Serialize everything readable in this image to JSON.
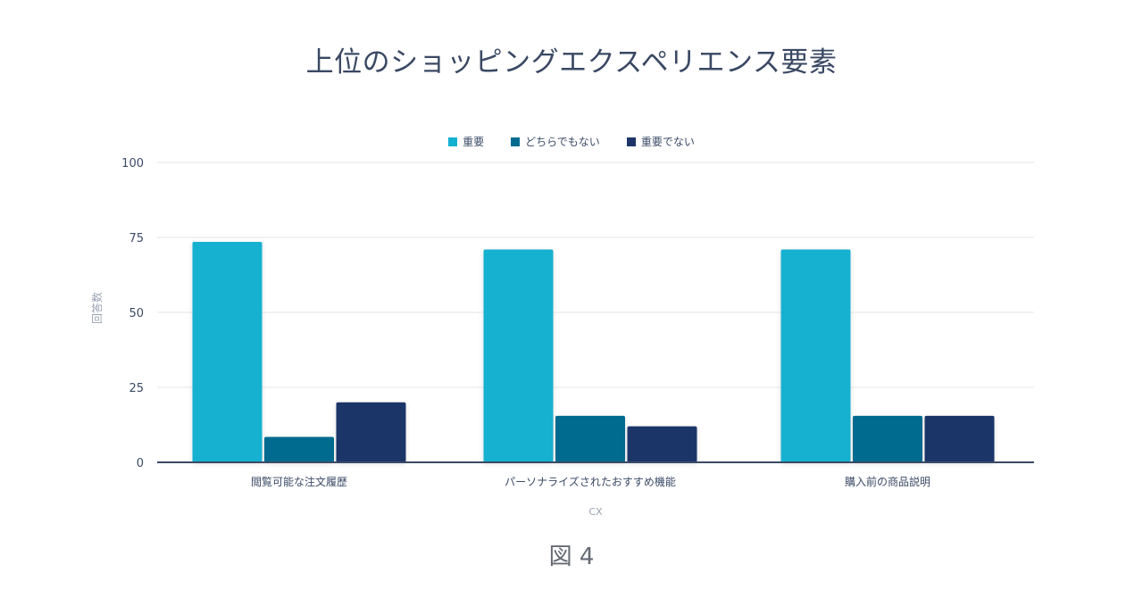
{
  "figure_caption": "図 4",
  "chart_data": {
    "type": "bar",
    "title": "上位のショッピングエクスペリエンス要素",
    "xlabel": "CX",
    "ylabel": "回答数",
    "ylim": [
      0,
      100
    ],
    "yticks": [
      0,
      25,
      50,
      75,
      100
    ],
    "grid": true,
    "legend_position": "top-center",
    "categories": [
      "閲覧可能な注文履歴",
      "パーソナライズされたおすすめ機能",
      "購入前の商品説明"
    ],
    "series": [
      {
        "name": "重要",
        "color": "#12b1d0",
        "values": [
          73.5,
          71,
          71
        ]
      },
      {
        "name": "どちらでもない",
        "color": "#006b8f",
        "values": [
          8.5,
          15.5,
          15.5
        ]
      },
      {
        "name": "重要でない",
        "color": "#1e3569",
        "values": [
          20,
          12,
          15.5
        ]
      }
    ]
  }
}
